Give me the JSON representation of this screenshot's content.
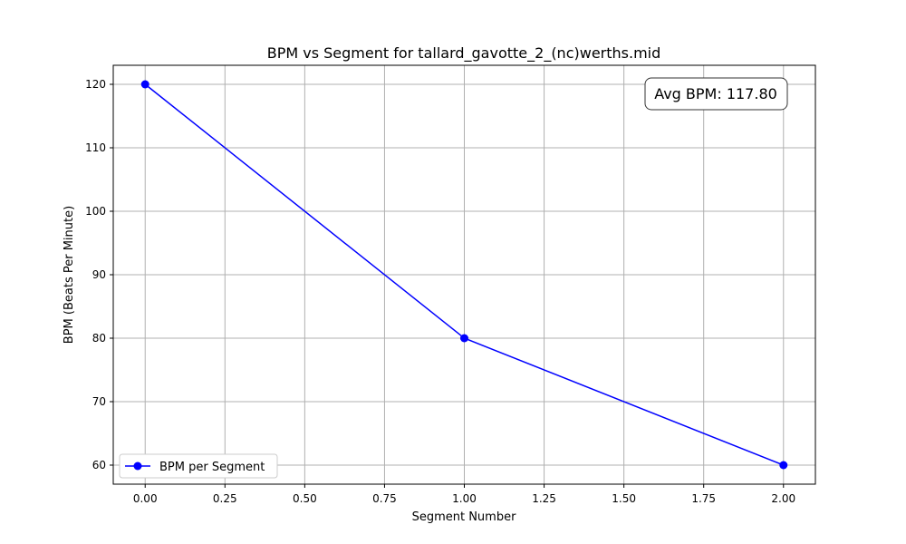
{
  "chart_data": {
    "type": "line",
    "title": "BPM vs Segment for tallard_gavotte_2_(nc)werths.mid",
    "xlabel": "Segment Number",
    "ylabel": "BPM (Beats Per Minute)",
    "xlim": [
      -0.1,
      2.1
    ],
    "ylim": [
      57,
      123
    ],
    "xticks": [
      0,
      0.25,
      0.5,
      0.75,
      1.0,
      1.25,
      1.5,
      1.75,
      2.0
    ],
    "xtick_labels": [
      "0.00",
      "0.25",
      "0.50",
      "0.75",
      "1.00",
      "1.25",
      "1.50",
      "1.75",
      "2.00"
    ],
    "yticks": [
      60,
      70,
      80,
      90,
      100,
      110,
      120
    ],
    "ytick_labels": [
      "60",
      "70",
      "80",
      "90",
      "100",
      "110",
      "120"
    ],
    "grid": true,
    "legend_position": "lower-left",
    "series": [
      {
        "name": "BPM per Segment",
        "color": "#0000ff",
        "marker": "circle",
        "x": [
          0,
          1,
          2
        ],
        "y": [
          120,
          80,
          60
        ]
      }
    ],
    "annotation": {
      "text": "Avg BPM: 117.80",
      "position": "top-right"
    }
  }
}
